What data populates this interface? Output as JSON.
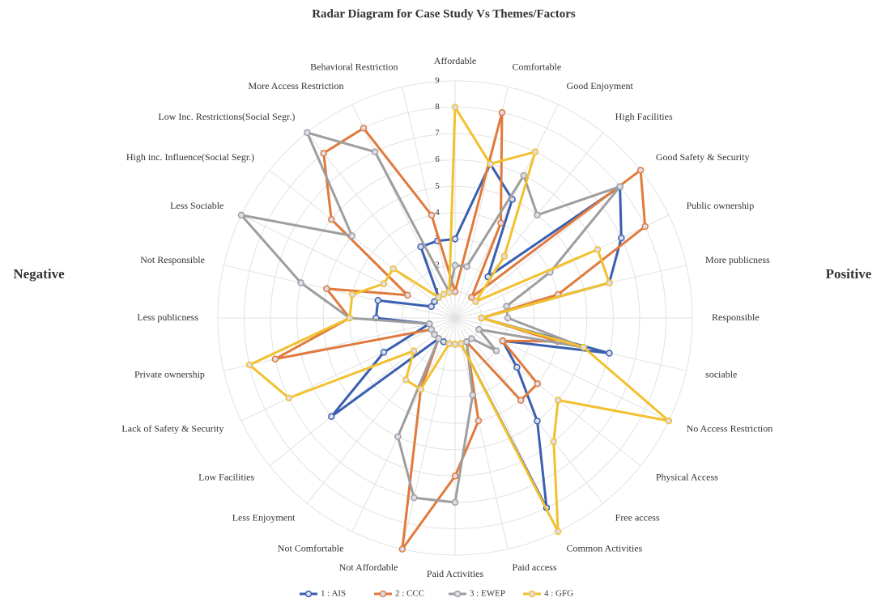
{
  "chart_data": {
    "type": "radar",
    "title": "Radar Diagram for Case Study Vs Themes/Factors",
    "annotations": [
      "Negative",
      "Positive"
    ],
    "categories": [
      "Affordable",
      "Comfortable",
      "Good Enjoyment",
      "High Facilities",
      "Good Safety & Security",
      "Public ownership",
      "More publicness",
      "Responsible",
      "sociable",
      "No Access Restriction",
      "Physical Access",
      "Free access",
      "Common Activities",
      "Paid access",
      "Paid Activities",
      "Not Affordable",
      "Not Comfortable",
      "Less Enjoyment",
      "Low Facilities",
      "Lack of Safety & Security",
      "Private ownership",
      "Less publicness",
      "Not Responsible",
      "Less Sociable",
      "High inc. Influence(Social Segr.)",
      "Low Inc. Restrictions(Social Segr.)",
      "More Access Restriction",
      "Behavioral Restriction"
    ],
    "rlim": [
      0,
      9
    ],
    "rticks": [
      1,
      2,
      3,
      4,
      5,
      6,
      7,
      8,
      9
    ],
    "grid": true,
    "legend": "bottom",
    "series": [
      {
        "name": "1 : AIS",
        "color": "#3a5fb0",
        "values": [
          3,
          6,
          5,
          2,
          8,
          7,
          6,
          1,
          6,
          2,
          3,
          5,
          8,
          1,
          1,
          1,
          1,
          1,
          6,
          3,
          1,
          3,
          3,
          1,
          1,
          1,
          3,
          3
        ]
      },
      {
        "name": "2 : CCC",
        "color": "#e07a3c",
        "values": [
          1,
          8,
          4,
          1,
          9,
          8,
          4,
          1,
          4,
          2,
          4,
          4,
          1,
          4,
          6,
          9,
          3,
          1,
          1,
          1,
          7,
          4,
          5,
          2,
          6,
          8,
          8,
          4
        ]
      },
      {
        "name": "3 : EWEP",
        "color": "#9e9e9e",
        "values": [
          2,
          2,
          6,
          5,
          8,
          4,
          2,
          2,
          5,
          1,
          2,
          1,
          1,
          3,
          7,
          7,
          5,
          1,
          1,
          1,
          1,
          4,
          6,
          9,
          5,
          9,
          7,
          1
        ]
      },
      {
        "name": "4 : GFG",
        "color": "#f2c12e",
        "values": [
          8,
          6,
          7,
          3,
          1,
          6,
          6,
          1,
          5,
          9,
          5,
          6,
          9,
          1,
          1,
          1,
          3,
          3,
          2,
          7,
          8,
          4,
          4,
          3,
          3,
          1,
          1,
          1
        ]
      }
    ]
  }
}
